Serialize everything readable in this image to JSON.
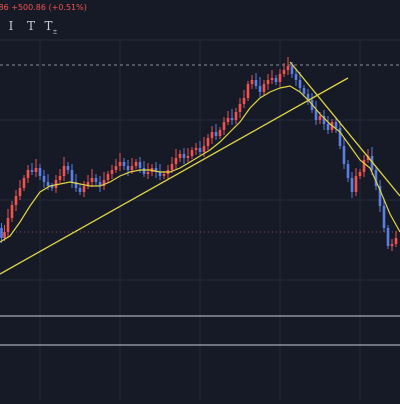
{
  "header": {
    "change_text": ".86 +500.86 (+0.51%)"
  },
  "toolbar": {
    "tools": [
      {
        "label": "I",
        "name": "cursor-tool-icon"
      },
      {
        "label": "T",
        "name": "text-tool-icon"
      },
      {
        "label": "T",
        "sub": "±",
        "name": "text-note-tool-icon"
      }
    ]
  },
  "colors": {
    "background": "#151a26",
    "up_candle": "#ef5350",
    "down_candle": "#5b7fe0",
    "moving_average": "#e0d447",
    "trendline": "#e0d447",
    "grid": "#242a38",
    "price_line": "#c9ccd6"
  },
  "chart_data": {
    "type": "candlestick",
    "series": [
      {
        "name": "",
        "kind": "candles",
        "ohlc_shape": "sequence of small candles: rise from lower-left, a plateau, a peak, then a sharp decline",
        "close_path": [
          [
            0,
            228
          ],
          [
            3,
            238
          ],
          [
            6,
            232
          ],
          [
            10,
            218
          ],
          [
            14,
            205
          ],
          [
            18,
            196
          ],
          [
            22,
            188
          ],
          [
            26,
            178
          ],
          [
            30,
            170
          ],
          [
            34,
            172
          ],
          [
            38,
            168
          ],
          [
            42,
            176
          ],
          [
            46,
            182
          ],
          [
            50,
            186
          ],
          [
            54,
            188
          ],
          [
            58,
            180
          ],
          [
            62,
            176
          ],
          [
            66,
            166
          ],
          [
            70,
            170
          ],
          [
            74,
            182
          ],
          [
            78,
            188
          ],
          [
            82,
            192
          ],
          [
            86,
            186
          ],
          [
            90,
            182
          ],
          [
            94,
            178
          ],
          [
            98,
            182
          ],
          [
            102,
            186
          ],
          [
            106,
            180
          ],
          [
            110,
            174
          ],
          [
            114,
            170
          ],
          [
            118,
            166
          ],
          [
            122,
            162
          ],
          [
            126,
            166
          ],
          [
            130,
            170
          ],
          [
            134,
            166
          ],
          [
            138,
            162
          ],
          [
            142,
            168
          ],
          [
            146,
            174
          ],
          [
            150,
            172
          ],
          [
            154,
            168
          ],
          [
            158,
            172
          ],
          [
            162,
            176
          ],
          [
            166,
            174
          ],
          [
            170,
            170
          ],
          [
            174,
            164
          ],
          [
            178,
            158
          ],
          [
            182,
            154
          ],
          [
            186,
            158
          ],
          [
            190,
            156
          ],
          [
            194,
            150
          ],
          [
            198,
            148
          ],
          [
            202,
            152
          ],
          [
            206,
            146
          ],
          [
            210,
            138
          ],
          [
            214,
            132
          ],
          [
            218,
            136
          ],
          [
            222,
            130
          ],
          [
            226,
            122
          ],
          [
            230,
            118
          ],
          [
            234,
            120
          ],
          [
            238,
            112
          ],
          [
            242,
            104
          ],
          [
            246,
            98
          ],
          [
            250,
            84
          ],
          [
            254,
            80
          ],
          [
            258,
            86
          ],
          [
            262,
            92
          ],
          [
            266,
            84
          ],
          [
            270,
            80
          ],
          [
            274,
            78
          ],
          [
            278,
            82
          ],
          [
            282,
            74
          ],
          [
            286,
            70
          ],
          [
            290,
            66
          ],
          [
            294,
            74
          ],
          [
            298,
            80
          ],
          [
            302,
            88
          ],
          [
            306,
            94
          ],
          [
            310,
            100
          ],
          [
            314,
            110
          ],
          [
            318,
            120
          ],
          [
            322,
            116
          ],
          [
            326,
            124
          ],
          [
            330,
            130
          ],
          [
            334,
            122
          ],
          [
            338,
            128
          ],
          [
            342,
            146
          ],
          [
            346,
            164
          ],
          [
            350,
            178
          ],
          [
            354,
            192
          ],
          [
            358,
            176
          ],
          [
            362,
            172
          ],
          [
            366,
            160
          ],
          [
            370,
            156
          ],
          [
            374,
            170
          ],
          [
            378,
            186
          ],
          [
            382,
            206
          ],
          [
            386,
            228
          ],
          [
            390,
            246
          ],
          [
            394,
            244
          ],
          [
            398,
            238
          ]
        ]
      }
    ],
    "ma_path": [
      [
        0,
        242
      ],
      [
        10,
        236
      ],
      [
        20,
        222
      ],
      [
        30,
        206
      ],
      [
        40,
        192
      ],
      [
        50,
        186
      ],
      [
        60,
        184
      ],
      [
        70,
        182
      ],
      [
        80,
        184
      ],
      [
        90,
        186
      ],
      [
        100,
        186
      ],
      [
        110,
        182
      ],
      [
        120,
        176
      ],
      [
        130,
        172
      ],
      [
        140,
        170
      ],
      [
        150,
        170
      ],
      [
        160,
        172
      ],
      [
        170,
        172
      ],
      [
        180,
        168
      ],
      [
        190,
        162
      ],
      [
        200,
        156
      ],
      [
        210,
        150
      ],
      [
        220,
        142
      ],
      [
        230,
        132
      ],
      [
        240,
        122
      ],
      [
        250,
        108
      ],
      [
        260,
        98
      ],
      [
        270,
        92
      ],
      [
        280,
        88
      ],
      [
        290,
        86
      ],
      [
        300,
        92
      ],
      [
        310,
        102
      ],
      [
        320,
        114
      ],
      [
        330,
        124
      ],
      [
        340,
        132
      ],
      [
        350,
        146
      ],
      [
        360,
        160
      ],
      [
        370,
        168
      ],
      [
        380,
        190
      ],
      [
        390,
        214
      ],
      [
        400,
        232
      ]
    ],
    "trendlines": [
      {
        "from": [
          0,
          274
        ],
        "to": [
          348,
          78
        ]
      },
      {
        "from": [
          290,
          62
        ],
        "to": [
          400,
          196
        ]
      }
    ],
    "horizontal_lines": [
      {
        "y": 65,
        "style": "dashed"
      },
      {
        "y": 232,
        "style": "dotted-red"
      },
      {
        "y": 316,
        "style": "solid"
      },
      {
        "y": 345,
        "style": "solid"
      }
    ],
    "y_range": [
      400,
      0
    ],
    "grid": true
  }
}
